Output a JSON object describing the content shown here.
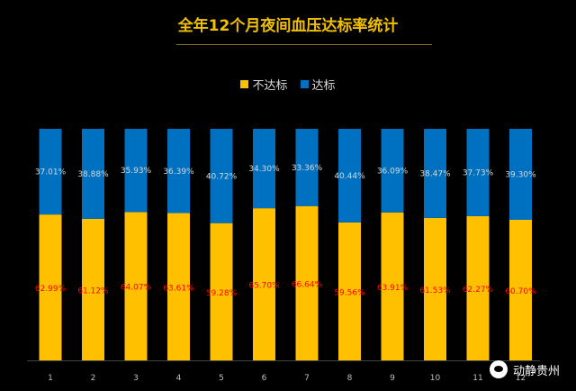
{
  "chart_data": {
    "type": "bar",
    "stacked": true,
    "percent": true,
    "title": "全年12个月夜间血压达标率统计",
    "categories": [
      "1",
      "2",
      "3",
      "4",
      "5",
      "6",
      "7",
      "8",
      "9",
      "10",
      "11",
      "12"
    ],
    "series": [
      {
        "name": "不达标",
        "color": "#ffc000",
        "label_color": "#ff0000",
        "values": [
          62.99,
          61.12,
          64.07,
          63.61,
          59.28,
          65.7,
          66.64,
          59.56,
          63.91,
          61.53,
          62.27,
          60.7
        ],
        "labels": [
          "62.99%",
          "61.12%",
          "64.07%",
          "63.61%",
          "59.28%",
          "65.70%",
          "66.64%",
          "59.56%",
          "63.91%",
          "61.53%",
          "62.27%",
          "60.70%"
        ]
      },
      {
        "name": "达标",
        "color": "#0070c0",
        "label_color": "#d9d9d9",
        "values": [
          37.01,
          38.88,
          35.93,
          36.39,
          40.72,
          34.3,
          33.36,
          40.44,
          36.09,
          38.47,
          37.73,
          39.3
        ],
        "labels": [
          "37.01%",
          "38.88%",
          "35.93%",
          "36.39%",
          "40.72%",
          "34.30%",
          "33.36%",
          "40.44%",
          "36.09%",
          "38.47%",
          "37.73%",
          "39.30%"
        ]
      }
    ],
    "ylim": [
      0,
      100
    ],
    "legend_position": "top-center",
    "grid": false
  },
  "watermark": {
    "text": "动静贵州",
    "icon": "wechat-icon"
  }
}
